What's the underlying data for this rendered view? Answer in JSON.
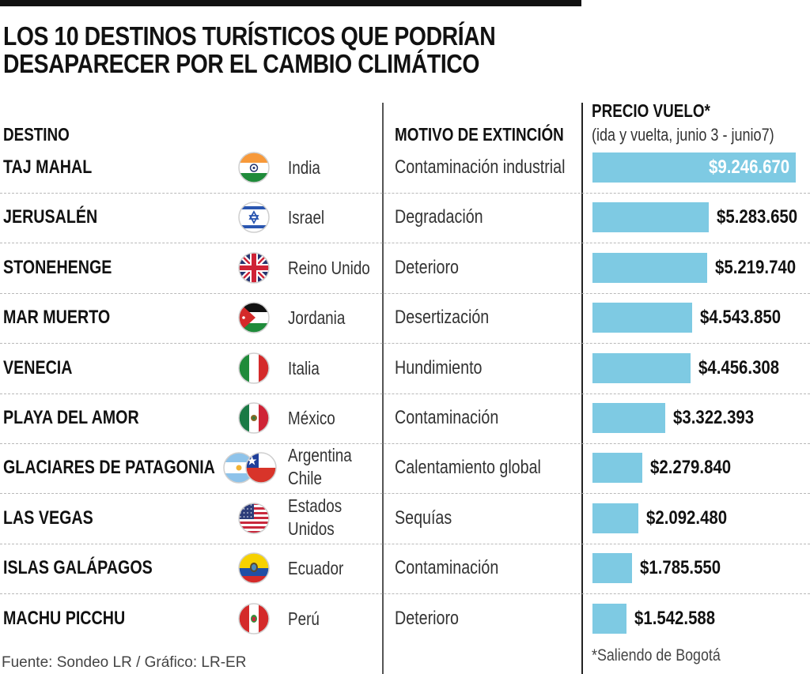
{
  "header": {
    "title_line1": "LOS 10 DESTINOS TURÍSTICOS QUE PODRÍAN",
    "title_line2": "DESAPARECER POR EL CAMBIO CLIMÁTICO"
  },
  "columns": {
    "destino": "DESTINO",
    "motivo": "MOTIVO DE EXTINCIÓN",
    "precio": "PRECIO VUELO*",
    "precio_sub": "(ida y vuelta, junio 3 - junio7)"
  },
  "rows": [
    {
      "destino": "TAJ MAHAL",
      "pais": "India",
      "pais2": "",
      "flag": "india-flag",
      "motivo": "Contaminación industrial",
      "precio_label": "$9.246.670"
    },
    {
      "destino": "JERUSALÉN",
      "pais": "Israel",
      "pais2": "",
      "flag": "israel-flag",
      "motivo": "Degradación",
      "precio_label": "$5.283.650"
    },
    {
      "destino": "STONEHENGE",
      "pais": "Reino Unido",
      "pais2": "",
      "flag": "uk-flag",
      "motivo": "Deterioro",
      "precio_label": "$5.219.740"
    },
    {
      "destino": "MAR MUERTO",
      "pais": "Jordania",
      "pais2": "",
      "flag": "jordan-flag",
      "motivo": "Desertización",
      "precio_label": "$4.543.850"
    },
    {
      "destino": "VENECIA",
      "pais": "Italia",
      "pais2": "",
      "flag": "italy-flag",
      "motivo": "Hundimiento",
      "precio_label": "$4.456.308"
    },
    {
      "destino": "PLAYA DEL AMOR",
      "pais": "México",
      "pais2": "",
      "flag": "mexico-flag",
      "motivo": "Contaminación",
      "precio_label": "$3.322.393"
    },
    {
      "destino": "GLACIARES DE PATAGONIA",
      "pais": "Argentina",
      "pais2": "Chile",
      "flag": "argentina-chile-flags",
      "motivo": "Calentamiento global",
      "precio_label": "$2.279.840"
    },
    {
      "destino": "LAS VEGAS",
      "pais": "Estados",
      "pais2": "Unidos",
      "flag": "usa-flag",
      "motivo": "Sequías",
      "precio_label": "$2.092.480"
    },
    {
      "destino": "ISLAS GALÁPAGOS",
      "pais": "Ecuador",
      "pais2": "",
      "flag": "ecuador-flag",
      "motivo": "Contaminación",
      "precio_label": "$1.785.550"
    },
    {
      "destino": "MACHU PICCHU",
      "pais": "Perú",
      "pais2": "",
      "flag": "peru-flag",
      "motivo": "Deterioro",
      "precio_label": "$1.542.588"
    }
  ],
  "footer": {
    "source": "Fuente: Sondeo LR / Gráfico: LR-ER",
    "note": "*Saliendo de Bogotá"
  },
  "colors": {
    "bar": "#7ecae3",
    "text": "#111111",
    "inside_label": "#ffffff"
  },
  "chart_data": {
    "type": "bar",
    "orientation": "horizontal",
    "title": "LOS 10 DESTINOS TURÍSTICOS QUE PODRÍAN DESAPARECER POR EL CAMBIO CLIMÁTICO",
    "xlabel": "PRECIO VUELO* (ida y vuelta, junio 3 - junio7)",
    "ylabel": "DESTINO",
    "categories": [
      "TAJ MAHAL",
      "JERUSALÉN",
      "STONEHENGE",
      "MAR MUERTO",
      "VENECIA",
      "PLAYA DEL AMOR",
      "GLACIARES DE PATAGONIA",
      "LAS VEGAS",
      "ISLAS GALÁPAGOS",
      "MACHU PICCHU"
    ],
    "values": [
      9246670,
      5283650,
      5219740,
      4543850,
      4456308,
      3322393,
      2279840,
      2092480,
      1785550,
      1542588
    ],
    "xlim": [
      0,
      9246670
    ],
    "currency": "COP",
    "grid": false,
    "legend": "none"
  }
}
